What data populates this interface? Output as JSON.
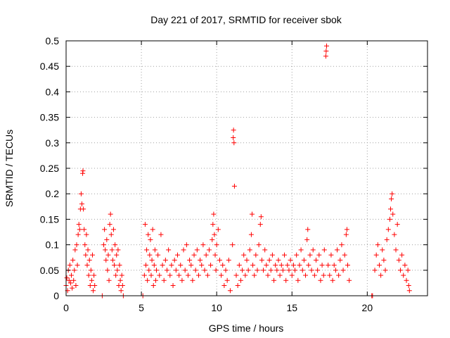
{
  "chart_data": {
    "type": "scatter",
    "title": "Day 221 of 2017, SRMTID for receiver sbok",
    "xlabel": "GPS time / hours",
    "ylabel": "SRMTID / TECUs",
    "xlim": [
      0,
      24
    ],
    "ylim": [
      0,
      0.5
    ],
    "x_ticks": [
      "0",
      "5",
      "10",
      "15",
      "20"
    ],
    "x_tick_values": [
      0,
      5,
      10,
      15,
      20
    ],
    "y_ticks": [
      "0",
      "0.05",
      "0.1",
      "0.15",
      "0.2",
      "0.25",
      "0.3",
      "0.35",
      "0.4",
      "0.45",
      "0.5"
    ],
    "y_tick_values": [
      0,
      0.05,
      0.1,
      0.15,
      0.2,
      0.25,
      0.3,
      0.35,
      0.4,
      0.45,
      0.5
    ],
    "grid": true,
    "marker": "+",
    "color": "#ff0000",
    "series": [
      {
        "name": "SRMTID",
        "points": [
          [
            0.0,
            0.02
          ],
          [
            0.05,
            0.035
          ],
          [
            0.1,
            0.01
          ],
          [
            0.15,
            0.05
          ],
          [
            0.2,
            0.03
          ],
          [
            0.25,
            0.06
          ],
          [
            0.3,
            0.025
          ],
          [
            0.35,
            0.04
          ],
          [
            0.4,
            0.015
          ],
          [
            0.45,
            0.07
          ],
          [
            0.5,
            0.03
          ],
          [
            0.55,
            0.05
          ],
          [
            0.6,
            0.09
          ],
          [
            0.65,
            0.02
          ],
          [
            0.7,
            0.1
          ],
          [
            0.75,
            0.06
          ],
          [
            0.8,
            0.12
          ],
          [
            0.85,
            0.14
          ],
          [
            0.9,
            0.13
          ],
          [
            0.95,
            0.17
          ],
          [
            1.0,
            0.2
          ],
          [
            1.05,
            0.18
          ],
          [
            1.1,
            0.24
          ],
          [
            1.12,
            0.245
          ],
          [
            1.15,
            0.17
          ],
          [
            1.2,
            0.13
          ],
          [
            1.25,
            0.1
          ],
          [
            1.3,
            0.08
          ],
          [
            1.35,
            0.12
          ],
          [
            1.4,
            0.06
          ],
          [
            1.45,
            0.09
          ],
          [
            1.5,
            0.04
          ],
          [
            1.55,
            0.07
          ],
          [
            1.6,
            0.02
          ],
          [
            1.65,
            0.05
          ],
          [
            1.7,
            0.03
          ],
          [
            1.75,
            0.08
          ],
          [
            1.8,
            0.01
          ],
          [
            1.85,
            0.04
          ],
          [
            1.9,
            0.02
          ],
          [
            2.4,
            0.0
          ],
          [
            2.5,
            0.1
          ],
          [
            2.55,
            0.13
          ],
          [
            2.6,
            0.09
          ],
          [
            2.65,
            0.07
          ],
          [
            2.7,
            0.11
          ],
          [
            2.75,
            0.05
          ],
          [
            2.8,
            0.08
          ],
          [
            2.85,
            0.03
          ],
          [
            2.9,
            0.14
          ],
          [
            2.95,
            0.16
          ],
          [
            3.0,
            0.12
          ],
          [
            3.05,
            0.09
          ],
          [
            3.1,
            0.07
          ],
          [
            3.15,
            0.13
          ],
          [
            3.2,
            0.06
          ],
          [
            3.25,
            0.1
          ],
          [
            3.3,
            0.04
          ],
          [
            3.35,
            0.08
          ],
          [
            3.4,
            0.05
          ],
          [
            3.45,
            0.09
          ],
          [
            3.5,
            0.02
          ],
          [
            3.55,
            0.06
          ],
          [
            3.6,
            0.03
          ],
          [
            3.65,
            0.01
          ],
          [
            3.7,
            0.04
          ],
          [
            3.75,
            0.02
          ],
          [
            3.8,
            0.0
          ],
          [
            5.1,
            0.0
          ],
          [
            5.2,
            0.04
          ],
          [
            5.25,
            0.14
          ],
          [
            5.3,
            0.06
          ],
          [
            5.35,
            0.09
          ],
          [
            5.4,
            0.03
          ],
          [
            5.45,
            0.12
          ],
          [
            5.5,
            0.05
          ],
          [
            5.55,
            0.08
          ],
          [
            5.6,
            0.11
          ],
          [
            5.65,
            0.04
          ],
          [
            5.7,
            0.07
          ],
          [
            5.75,
            0.13
          ],
          [
            5.8,
            0.02
          ],
          [
            5.85,
            0.06
          ],
          [
            5.9,
            0.09
          ],
          [
            5.95,
            0.03
          ],
          [
            6.0,
            0.05
          ],
          [
            6.1,
            0.08
          ],
          [
            6.2,
            0.04
          ],
          [
            6.3,
            0.12
          ],
          [
            6.4,
            0.06
          ],
          [
            6.5,
            0.03
          ],
          [
            6.6,
            0.07
          ],
          [
            6.7,
            0.05
          ],
          [
            6.8,
            0.09
          ],
          [
            6.9,
            0.04
          ],
          [
            7.0,
            0.06
          ],
          [
            7.1,
            0.02
          ],
          [
            7.2,
            0.07
          ],
          [
            7.3,
            0.05
          ],
          [
            7.4,
            0.08
          ],
          [
            7.5,
            0.04
          ],
          [
            7.6,
            0.06
          ],
          [
            7.7,
            0.03
          ],
          [
            7.8,
            0.09
          ],
          [
            7.9,
            0.05
          ],
          [
            8.0,
            0.1
          ],
          [
            8.1,
            0.04
          ],
          [
            8.2,
            0.07
          ],
          [
            8.3,
            0.06
          ],
          [
            8.4,
            0.03
          ],
          [
            8.5,
            0.08
          ],
          [
            8.6,
            0.05
          ],
          [
            8.7,
            0.09
          ],
          [
            8.8,
            0.04
          ],
          [
            8.9,
            0.07
          ],
          [
            9.0,
            0.06
          ],
          [
            9.1,
            0.1
          ],
          [
            9.2,
            0.05
          ],
          [
            9.3,
            0.08
          ],
          [
            9.4,
            0.04
          ],
          [
            9.5,
            0.09
          ],
          [
            9.6,
            0.06
          ],
          [
            9.7,
            0.11
          ],
          [
            9.75,
            0.14
          ],
          [
            9.8,
            0.16
          ],
          [
            9.85,
            0.12
          ],
          [
            9.9,
            0.08
          ],
          [
            9.95,
            0.05
          ],
          [
            10.0,
            0.1
          ],
          [
            10.1,
            0.13
          ],
          [
            10.2,
            0.07
          ],
          [
            10.3,
            0.04
          ],
          [
            10.4,
            0.06
          ],
          [
            10.5,
            0.02
          ],
          [
            10.6,
            0.05
          ],
          [
            10.7,
            0.03
          ],
          [
            10.8,
            0.07
          ],
          [
            10.9,
            0.01
          ],
          [
            11.1,
            0.31
          ],
          [
            11.12,
            0.325
          ],
          [
            11.15,
            0.3
          ],
          [
            11.18,
            0.215
          ],
          [
            11.05,
            0.1
          ],
          [
            11.3,
            0.04
          ],
          [
            11.4,
            0.02
          ],
          [
            11.5,
            0.06
          ],
          [
            11.6,
            0.03
          ],
          [
            11.7,
            0.05
          ],
          [
            11.8,
            0.08
          ],
          [
            11.9,
            0.04
          ],
          [
            12.0,
            0.07
          ],
          [
            12.1,
            0.05
          ],
          [
            12.2,
            0.09
          ],
          [
            12.3,
            0.12
          ],
          [
            12.35,
            0.16
          ],
          [
            12.4,
            0.06
          ],
          [
            12.5,
            0.04
          ],
          [
            12.6,
            0.08
          ],
          [
            12.7,
            0.05
          ],
          [
            12.8,
            0.1
          ],
          [
            12.9,
            0.14
          ],
          [
            12.95,
            0.155
          ],
          [
            13.0,
            0.07
          ],
          [
            13.1,
            0.05
          ],
          [
            13.2,
            0.09
          ],
          [
            13.3,
            0.06
          ],
          [
            13.4,
            0.04
          ],
          [
            13.5,
            0.07
          ],
          [
            13.6,
            0.05
          ],
          [
            13.7,
            0.08
          ],
          [
            13.8,
            0.03
          ],
          [
            13.9,
            0.06
          ],
          [
            14.0,
            0.05
          ],
          [
            14.1,
            0.07
          ],
          [
            14.2,
            0.04
          ],
          [
            14.3,
            0.06
          ],
          [
            14.4,
            0.05
          ],
          [
            14.5,
            0.08
          ],
          [
            14.6,
            0.03
          ],
          [
            14.7,
            0.06
          ],
          [
            14.8,
            0.05
          ],
          [
            14.9,
            0.07
          ],
          [
            15.0,
            0.04
          ],
          [
            15.1,
            0.06
          ],
          [
            15.2,
            0.05
          ],
          [
            15.3,
            0.08
          ],
          [
            15.4,
            0.03
          ],
          [
            15.5,
            0.06
          ],
          [
            15.6,
            0.09
          ],
          [
            15.7,
            0.05
          ],
          [
            15.8,
            0.07
          ],
          [
            15.9,
            0.04
          ],
          [
            16.0,
            0.11
          ],
          [
            16.05,
            0.13
          ],
          [
            16.1,
            0.06
          ],
          [
            16.2,
            0.08
          ],
          [
            16.3,
            0.05
          ],
          [
            16.4,
            0.09
          ],
          [
            16.5,
            0.04
          ],
          [
            16.6,
            0.07
          ],
          [
            16.7,
            0.05
          ],
          [
            16.8,
            0.08
          ],
          [
            16.9,
            0.03
          ],
          [
            17.0,
            0.06
          ],
          [
            17.1,
            0.04
          ],
          [
            17.15,
            0.09
          ],
          [
            17.25,
            0.47
          ],
          [
            17.27,
            0.48
          ],
          [
            17.3,
            0.49
          ],
          [
            17.4,
            0.06
          ],
          [
            17.5,
            0.04
          ],
          [
            17.6,
            0.08
          ],
          [
            17.7,
            0.03
          ],
          [
            17.8,
            0.06
          ],
          [
            17.9,
            0.05
          ],
          [
            18.0,
            0.09
          ],
          [
            18.1,
            0.04
          ],
          [
            18.2,
            0.07
          ],
          [
            18.3,
            0.1
          ],
          [
            18.4,
            0.05
          ],
          [
            18.5,
            0.08
          ],
          [
            18.6,
            0.12
          ],
          [
            18.65,
            0.13
          ],
          [
            18.7,
            0.06
          ],
          [
            18.8,
            0.03
          ],
          [
            20.3,
            0.0
          ],
          [
            20.35,
            0.0
          ],
          [
            20.5,
            0.05
          ],
          [
            20.6,
            0.08
          ],
          [
            20.7,
            0.1
          ],
          [
            20.8,
            0.06
          ],
          [
            20.9,
            0.04
          ],
          [
            21.0,
            0.09
          ],
          [
            21.1,
            0.07
          ],
          [
            21.2,
            0.05
          ],
          [
            21.3,
            0.11
          ],
          [
            21.4,
            0.13
          ],
          [
            21.5,
            0.15
          ],
          [
            21.55,
            0.17
          ],
          [
            21.6,
            0.19
          ],
          [
            21.65,
            0.2
          ],
          [
            21.7,
            0.16
          ],
          [
            21.8,
            0.12
          ],
          [
            21.9,
            0.09
          ],
          [
            22.0,
            0.14
          ],
          [
            22.1,
            0.07
          ],
          [
            22.2,
            0.05
          ],
          [
            22.3,
            0.08
          ],
          [
            22.4,
            0.04
          ],
          [
            22.5,
            0.06
          ],
          [
            22.6,
            0.03
          ],
          [
            22.7,
            0.05
          ],
          [
            22.75,
            0.02
          ],
          [
            22.8,
            0.01
          ]
        ]
      }
    ]
  }
}
